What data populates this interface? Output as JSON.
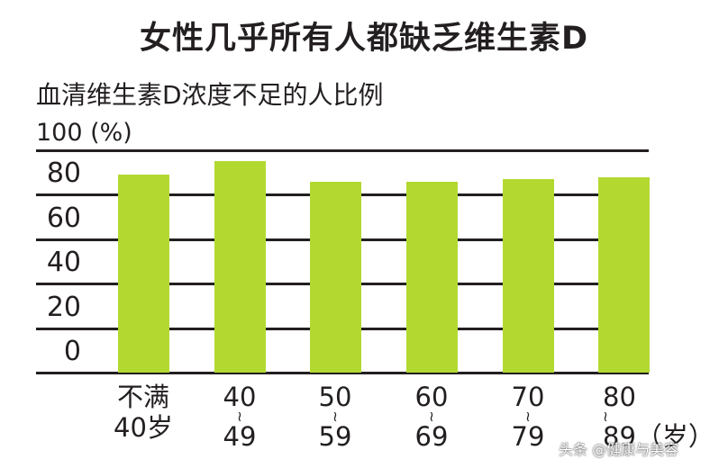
{
  "chart_data": {
    "type": "bar",
    "title": "女性几乎所有人都缺乏维生素D",
    "subtitle": "血清维生素D浓度不足的人比例",
    "ylabel": "100 (%)",
    "ylim": [
      0,
      100
    ],
    "yticks": [
      "100",
      "80",
      "60",
      "40",
      "20",
      "0"
    ],
    "categories": [
      "不满40岁",
      "40~49",
      "50~59",
      "60~69",
      "70~79",
      "80~89(岁)"
    ],
    "category_lines": [
      [
        "不满",
        "40岁"
      ],
      [
        "40",
        "~",
        "49"
      ],
      [
        "50",
        "~",
        "59"
      ],
      [
        "60",
        "~",
        "69"
      ],
      [
        "70",
        "~",
        "79"
      ],
      [
        "80",
        "~",
        "89（岁）"
      ]
    ],
    "values": [
      89,
      95,
      86,
      86,
      87,
      88
    ],
    "bar_color": "#b3d931",
    "grid": true
  },
  "watermark": "头条 @健康与美容"
}
